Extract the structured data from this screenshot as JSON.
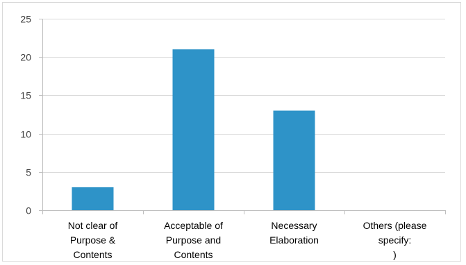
{
  "chart_data": {
    "type": "bar",
    "title": "",
    "xlabel": "",
    "ylabel": "",
    "categories": [
      [
        "Not clear of",
        "Purpose &",
        "Contents"
      ],
      [
        "Acceptable of",
        "Purpose and",
        "Contents"
      ],
      [
        "Necessary",
        "Elaboration"
      ],
      [
        "Others (please",
        "specify:",
        ")"
      ]
    ],
    "values": [
      3,
      21,
      13,
      0
    ],
    "ylim": [
      0,
      25
    ],
    "yticks": [
      0,
      5,
      10,
      15,
      20,
      25
    ],
    "grid": true,
    "legend": "none",
    "colors": {
      "bar": "#2e93c8",
      "grid": "#d9d9d9",
      "axis": "#bfbfbf"
    }
  }
}
